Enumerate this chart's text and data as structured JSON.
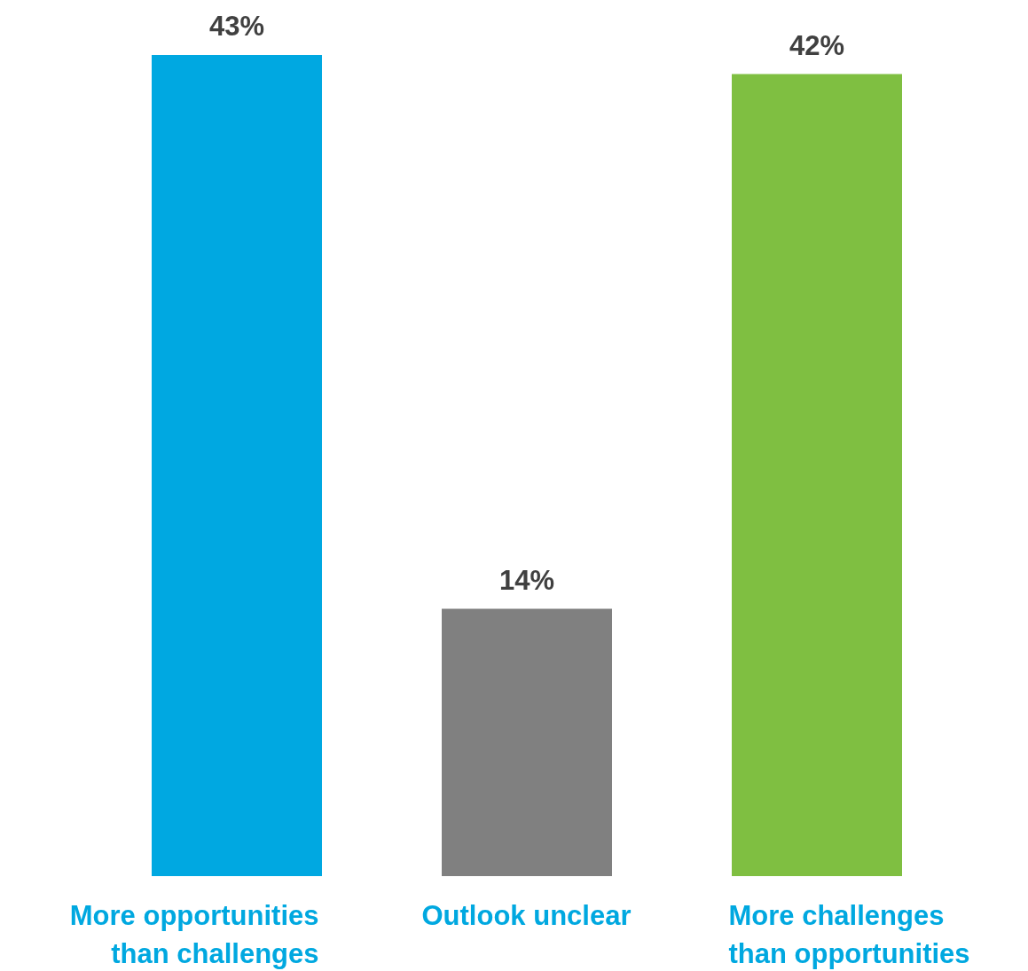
{
  "chart_data": {
    "type": "bar",
    "categories": [
      "More opportunities than challenges",
      "Outlook unclear",
      "More challenges than opportunities"
    ],
    "values": [
      43,
      14,
      42
    ],
    "value_labels": [
      "43%",
      "14%",
      "42%"
    ],
    "colors": [
      "#00a8e1",
      "#808080",
      "#7fbf41"
    ],
    "grid": false,
    "legend": false
  }
}
